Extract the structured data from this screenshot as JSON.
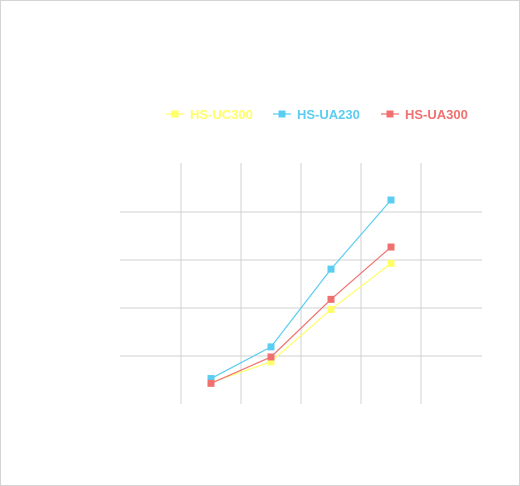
{
  "chart_data": {
    "type": "line",
    "title": "",
    "xlabel": "",
    "ylabel": "",
    "x": [
      1,
      2,
      3,
      4
    ],
    "ylim": [
      0,
      5
    ],
    "grid": {
      "horizontal": true,
      "vertical": true
    },
    "legend_position": "top",
    "series": [
      {
        "name": "HS-UC300",
        "color": "#ffff66",
        "values": [
          0.45,
          0.88,
          1.97,
          2.93
        ]
      },
      {
        "name": "HS-UA230",
        "color": "#5bcdf0",
        "values": [
          0.53,
          1.19,
          2.81,
          4.25
        ]
      },
      {
        "name": "HS-UA300",
        "color": "#f07070",
        "values": [
          0.43,
          0.98,
          2.18,
          3.27
        ]
      }
    ]
  }
}
